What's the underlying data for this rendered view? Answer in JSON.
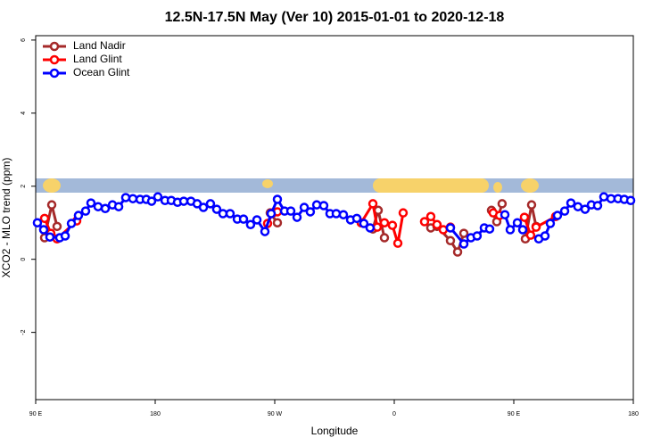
{
  "chart_data": {
    "type": "line",
    "title": "12.5N-17.5N May (Ver 10)   2015-01-01 to 2020-12-18",
    "x_label": "Longitude",
    "y_label": "XCO2 - MLO trend (ppm)",
    "xlim": [
      90,
      540
    ],
    "ylim": [
      -3.84,
      6.12
    ],
    "xticks": [
      {
        "value": 90,
        "label": "90 E"
      },
      180,
      {
        "value": 270,
        "label": "90 W"
      },
      {
        "value": 360,
        "label": "0"
      },
      {
        "value": 450,
        "label": "90 E"
      },
      {
        "value": 540,
        "label": "180"
      }
    ],
    "yticks": [
      -2,
      0,
      2,
      4,
      6
    ],
    "legend": "top-left",
    "series": [
      {
        "name": "Land Nadir",
        "color": "#a52a2a",
        "x": [
          96.7,
          102.1,
          106.1,
          null,
          266.6,
          272.0,
          null,
          343.9,
          347.9,
          352.6,
          null,
          387.5,
          392.2,
          402.3,
          407.7,
          412.4,
          null,
          433.2,
          437.2,
          441.2,
          null,
          458.7,
          463.4,
          466.8
        ],
        "values": [
          0.59,
          1.49,
          0.9,
          null,
          1.27,
          1.0,
          null,
          0.83,
          1.34,
          0.59,
          null,
          0.86,
          0.9,
          0.51,
          0.2,
          0.71,
          null,
          1.34,
          1.03,
          1.52,
          null,
          0.56,
          1.49,
          0.9
        ]
      },
      {
        "name": "Land Glint",
        "color": "#ff0000",
        "x": [
          96.7,
          101.4,
          106.1,
          120.9,
          null,
          264.6,
          268.6,
          272.0,
          null,
          335.1,
          343.9,
          347.2,
          352.6,
          358.6,
          362.7,
          366.7,
          null,
          382.8,
          387.5,
          392.2,
          396.9,
          402.3,
          null,
          434.5,
          439.3,
          null,
          458.0,
          462.7,
          466.8,
          481.5
        ],
        "values": [
          1.12,
          0.71,
          0.56,
          1.05,
          null,
          0.98,
          1.27,
          1.3,
          null,
          1.0,
          1.52,
          0.88,
          1.0,
          0.93,
          0.44,
          1.27,
          null,
          1.03,
          1.17,
          0.95,
          0.81,
          0.88,
          null,
          1.27,
          1.2,
          null,
          1.15,
          0.66,
          0.88,
          1.17
        ]
      },
      {
        "name": "Ocean Glint",
        "color": "#0000ff",
        "x": [
          91.3,
          96.0,
          100.7,
          108.1,
          112.2,
          116.9,
          122.2,
          127.6,
          131.6,
          137.0,
          142.4,
          147.8,
          152.5,
          157.8,
          163.2,
          168.6,
          173.3,
          177.3,
          182.0,
          187.4,
          192.1,
          196.8,
          201.5,
          206.9,
          211.6,
          216.3,
          221.6,
          226.3,
          231.0,
          236.4,
          241.8,
          246.5,
          251.8,
          256.6,
          262.6,
          267.3,
          272.0,
          277.4,
          282.1,
          286.8,
          292.2,
          296.8,
          301.6,
          306.9,
          311.6,
          316.3,
          321.7,
          327.1,
          331.8,
          337.1,
          341.8,
          null,
          402.3,
          412.4,
          417.7,
          422.4,
          427.8,
          431.8,
          null,
          443.3,
          447.3,
          452.7,
          456.7,
          null,
          468.8,
          473.5,
          477.5,
          482.9,
          488.3,
          493.0,
          498.3,
          503.7,
          508.4,
          513.1,
          517.8,
          523.2,
          528.5,
          533.2,
          538.0
        ],
        "values": [
          1.0,
          0.81,
          0.61,
          0.59,
          0.64,
          0.98,
          1.2,
          1.32,
          1.54,
          1.44,
          1.39,
          1.49,
          1.44,
          1.69,
          1.66,
          1.64,
          1.64,
          1.59,
          1.71,
          1.61,
          1.61,
          1.56,
          1.59,
          1.59,
          1.52,
          1.42,
          1.52,
          1.37,
          1.25,
          1.25,
          1.1,
          1.1,
          0.95,
          1.08,
          0.76,
          1.25,
          1.64,
          1.32,
          1.32,
          1.15,
          1.42,
          1.3,
          1.49,
          1.47,
          1.25,
          1.25,
          1.22,
          1.08,
          1.12,
          0.98,
          0.86,
          null,
          0.86,
          0.42,
          0.59,
          0.64,
          0.86,
          0.83,
          null,
          1.22,
          0.81,
          1.0,
          0.81,
          null,
          0.56,
          0.64,
          0.98,
          1.2,
          1.32,
          1.54,
          1.44,
          1.37,
          1.49,
          1.47,
          1.71,
          1.66,
          1.66,
          1.64,
          1.61
        ]
      }
    ]
  }
}
